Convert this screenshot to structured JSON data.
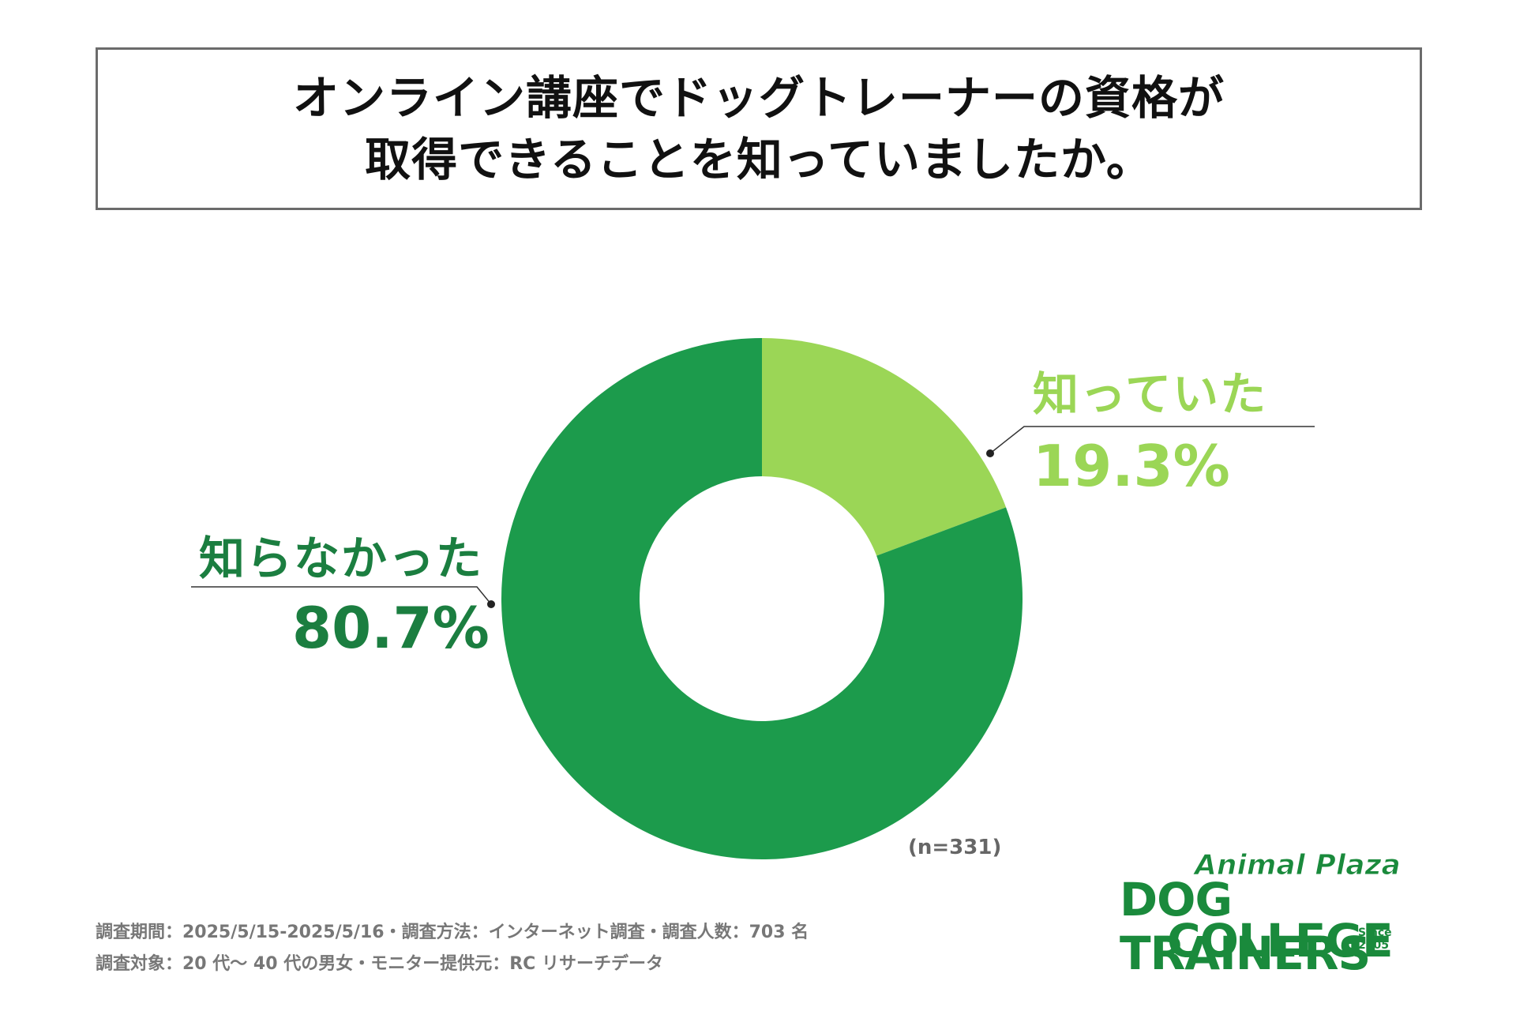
{
  "title": {
    "line1": "オンライン講座でドッグトレーナーの資格が",
    "line2": "取得できることを知っていましたか。"
  },
  "chart_data": {
    "type": "pie",
    "variant": "donut",
    "categories": [
      "知っていた",
      "知らなかった"
    ],
    "values": [
      19.3,
      80.7
    ],
    "labels": [
      "19.3%",
      "80.7%"
    ],
    "colors": [
      "#9bd656",
      "#1c9b4c"
    ],
    "sample_note": "(n=331)",
    "title": "オンライン講座でドッグトレーナーの資格が取得できることを知っていましたか。"
  },
  "footer": {
    "line1": "調査期間：2025/5/15-2025/5/16・調査方法：インターネット調査・調査人数：703 名",
    "line2": "調査対象：20 代〜 40 代の男女・モニター提供元：RC リサーチデータ"
  },
  "logo": {
    "top": "Animal Plaza",
    "mid": "DOG TRAINERS",
    "bottom": "COLLEGE",
    "since": "Since 2005",
    "color": "#1a8a3c"
  }
}
